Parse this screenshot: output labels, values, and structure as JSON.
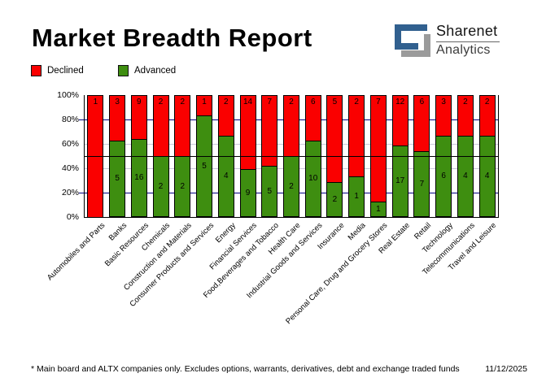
{
  "header": {
    "title": "Market Breadth Report",
    "logo": {
      "line1": "Sharenet",
      "line2": "Analytics"
    }
  },
  "legend": [
    {
      "label": "Declined",
      "color": "#fa0000"
    },
    {
      "label": "Advanced",
      "color": "#3e8e10"
    }
  ],
  "footer": {
    "note": "* Main board and ALTX companies only. Excludes options, warrants, derivatives, debt and exchange traded funds",
    "date": "11/12/2025"
  },
  "colors": {
    "declined": "#fa0000",
    "advanced": "#3e8e10",
    "grid_major": "#000080",
    "grid_minor": "#c8c8d8",
    "grid_emphasis": "#000000",
    "logo_blue": "#31608f",
    "logo_gray": "#9b9b9b"
  },
  "chart_data": {
    "type": "bar",
    "stacked": true,
    "units": "percent_of_category_total",
    "title": "Market Breadth Report",
    "categories": [
      "Automobiles and Parts",
      "Banks",
      "Basic Resources",
      "Chemicals",
      "Construction and Materials",
      "Consumer Products and Services",
      "Energy",
      "Financial Services",
      "Food,Beverages and Tobacco",
      "Health Care",
      "Industrial Goods and Services",
      "Insurance",
      "Media",
      "Personal Care, Drug and Grocery Stores",
      "Real Estate",
      "Retail",
      "Technology",
      "Telecommunications",
      "Travel and Leisure"
    ],
    "series": [
      {
        "name": "Declined",
        "color": "#fa0000",
        "values": [
          1,
          3,
          9,
          2,
          2,
          1,
          2,
          14,
          7,
          2,
          6,
          5,
          2,
          7,
          12,
          6,
          3,
          2,
          2
        ]
      },
      {
        "name": "Advanced",
        "color": "#3e8e10",
        "values": [
          0,
          5,
          16,
          2,
          2,
          5,
          4,
          9,
          5,
          2,
          10,
          2,
          1,
          1,
          17,
          7,
          6,
          4,
          4
        ]
      }
    ],
    "ylim": [
      0,
      100
    ],
    "yticks": [
      {
        "value": 0,
        "label": "0%"
      },
      {
        "value": 20,
        "label": "20%"
      },
      {
        "value": 40,
        "label": "40%"
      },
      {
        "value": 60,
        "label": "60%"
      },
      {
        "value": 80,
        "label": "80%"
      },
      {
        "value": 100,
        "label": "100%"
      }
    ],
    "gridlines": [
      {
        "value": 20,
        "kind": "major"
      },
      {
        "value": 40,
        "kind": "minor"
      },
      {
        "value": 50,
        "kind": "emphasis"
      },
      {
        "value": 60,
        "kind": "minor"
      },
      {
        "value": 80,
        "kind": "major"
      }
    ],
    "legend_position": "top-left",
    "value_labels": "declined at bar top, advanced centered in green segment"
  }
}
